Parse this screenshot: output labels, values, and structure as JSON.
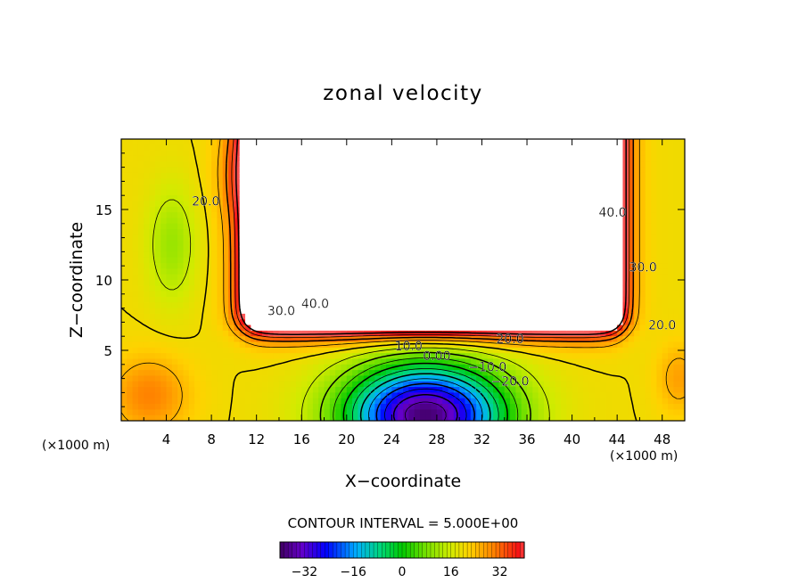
{
  "chart_data": {
    "type": "heatmap",
    "title": "zonal velocity",
    "xlabel": "X−coordinate",
    "ylabel": "Z−coordinate",
    "x_unit_left": "(×1000 m)",
    "x_unit_right": "(×1000 m)",
    "xlim": [
      0,
      50
    ],
    "ylim": [
      0,
      20
    ],
    "x_ticks": [
      4,
      8,
      12,
      16,
      20,
      24,
      28,
      32,
      36,
      40,
      44,
      48
    ],
    "x_tick_labels": [
      "4",
      "8",
      "12",
      "16",
      "20",
      "24",
      "28",
      "32",
      "36",
      "40",
      "44",
      "48"
    ],
    "y_ticks": [
      5,
      10,
      15
    ],
    "y_tick_labels": [
      "5",
      "10",
      "15"
    ],
    "contour_interval_label": "CONTOUR INTERVAL = 5.000E+00",
    "contour_interval": 5,
    "contour_labels": [
      {
        "text": "20.0",
        "x": 7.5,
        "z": 15.3
      },
      {
        "text": "40.0",
        "x": 17.2,
        "z": 8.0
      },
      {
        "text": "30.0",
        "x": 14.2,
        "z": 7.5
      },
      {
        "text": "40.0",
        "x": 43.6,
        "z": 14.5
      },
      {
        "text": "30.0",
        "x": 46.3,
        "z": 10.6
      },
      {
        "text": "20.0",
        "x": 48.0,
        "z": 6.5
      },
      {
        "text": "20.0",
        "x": 34.5,
        "z": 5.5
      },
      {
        "text": "10.0",
        "x": 25.5,
        "z": 5.0
      },
      {
        "text": "0.00",
        "x": 28.0,
        "z": 4.3
      },
      {
        "text": "−10.0",
        "x": 32.5,
        "z": 3.5
      },
      {
        "text": "−20.0",
        "x": 34.5,
        "z": 2.5
      }
    ],
    "colorbar": {
      "range": [
        -40,
        40
      ],
      "ticks": [
        -32,
        -16,
        0,
        16,
        32
      ],
      "tick_labels": [
        "−32",
        "−16",
        "0",
        "16",
        "32"
      ]
    },
    "field_model": {
      "background": 20,
      "jet_max": 60,
      "undefined_above": 42,
      "core": {
        "x": 27,
        "z": 0.4,
        "value": -38
      }
    },
    "colors": {
      "white_region": "#ffffff",
      "axis": "#000000"
    }
  }
}
